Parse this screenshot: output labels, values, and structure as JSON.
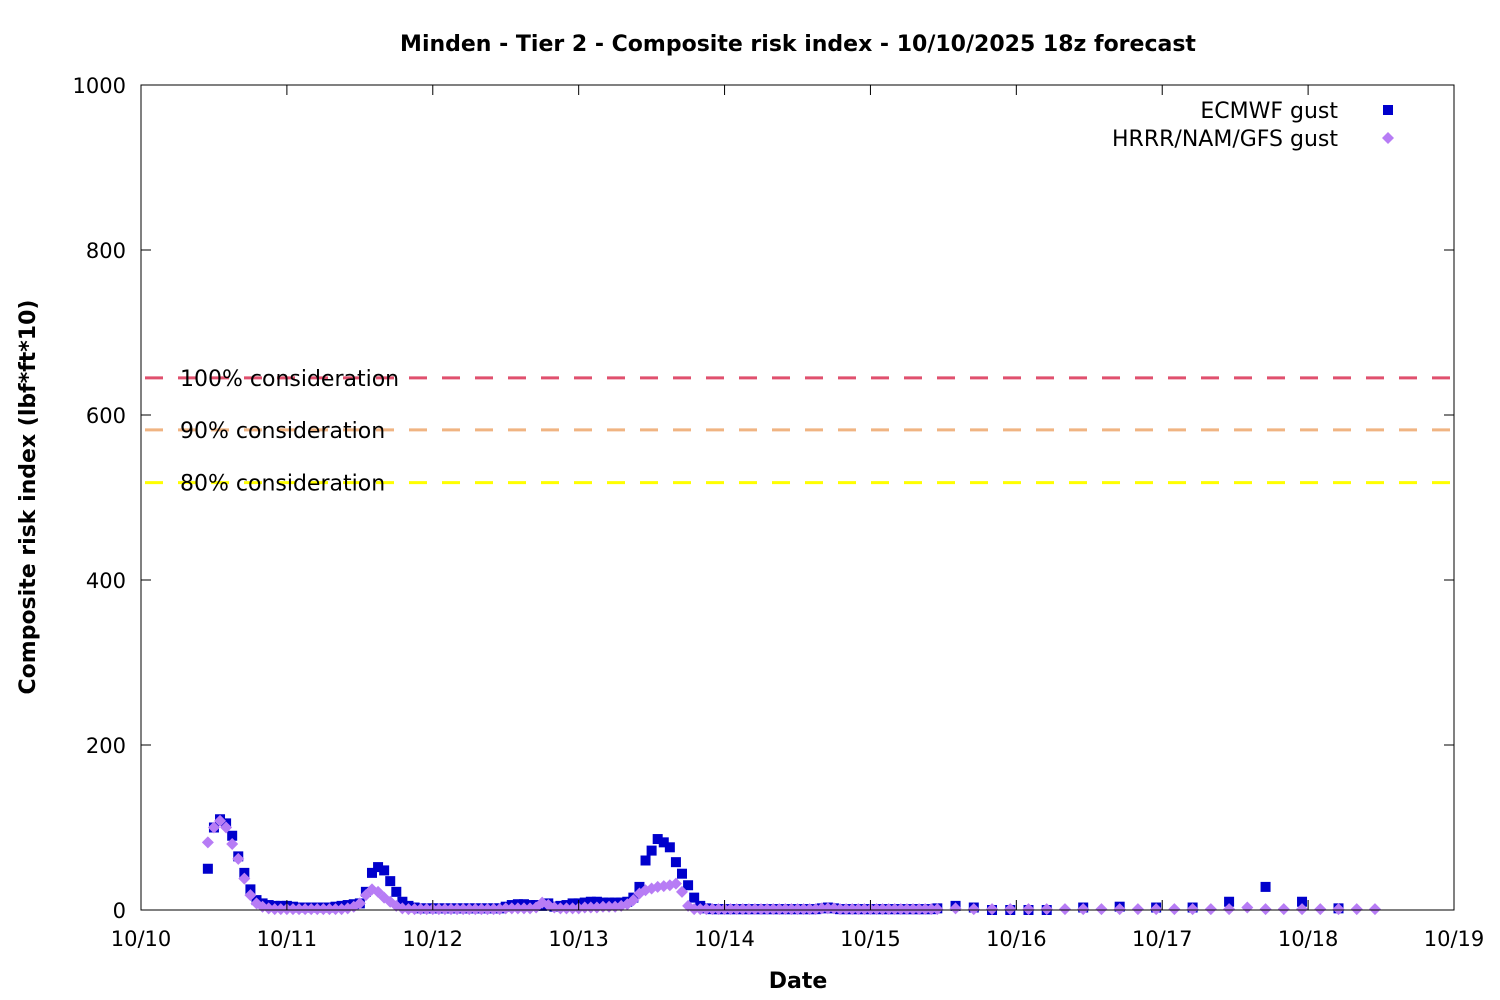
{
  "chart_data": {
    "type": "scatter",
    "title": "Minden - Tier 2 - Composite risk index - 10/10/2025 18z forecast",
    "xlabel": "Date",
    "ylabel": "Composite risk index (lbf*ft*10)",
    "xlim": [
      "10/10",
      "10/19"
    ],
    "ylim": [
      0,
      1000
    ],
    "x_ticks": [
      "10/10",
      "10/11",
      "10/12",
      "10/13",
      "10/14",
      "10/15",
      "10/16",
      "10/17",
      "10/18",
      "10/19"
    ],
    "y_ticks": [
      0,
      200,
      400,
      600,
      800,
      1000
    ],
    "grid": false,
    "legend_position": "top-right",
    "thresholds": [
      {
        "label": "100% consideration",
        "value": 645,
        "color": "#e0506e"
      },
      {
        "label": "90% consideration",
        "value": 582,
        "color": "#f0b482"
      },
      {
        "label": "80% consideration",
        "value": 518,
        "color": "#ffff00"
      }
    ],
    "series": [
      {
        "name": "ECMWF gust",
        "color": "#0000cc",
        "marker": "square",
        "days": [
          {
            "day": "10/10",
            "hour_utc": [
              11,
              12,
              13,
              14,
              15,
              16,
              17,
              18,
              19,
              20,
              21,
              22,
              23
            ],
            "y": [
              50,
              100,
              110,
              105,
              90,
              65,
              45,
              25,
              12,
              8,
              6,
              5,
              5
            ]
          },
          {
            "day": "10/11",
            "hour_utc": [
              0,
              1,
              2,
              3,
              4,
              5,
              6,
              7,
              8,
              9,
              10,
              11,
              12,
              13,
              14,
              15,
              16,
              17,
              18,
              19,
              20,
              21,
              22,
              23
            ],
            "y": [
              5,
              4,
              3,
              3,
              3,
              3,
              3,
              3,
              4,
              5,
              6,
              7,
              8,
              22,
              45,
              52,
              48,
              35,
              22,
              10,
              5,
              3,
              2,
              2
            ]
          },
          {
            "day": "10/12",
            "hour_utc": [
              0,
              1,
              2,
              3,
              4,
              5,
              6,
              7,
              8,
              9,
              10,
              11,
              12,
              13,
              14,
              15,
              16,
              17,
              18,
              19,
              20,
              21,
              22,
              23
            ],
            "y": [
              2,
              2,
              2,
              2,
              2,
              2,
              2,
              2,
              2,
              2,
              2,
              2,
              4,
              6,
              7,
              7,
              6,
              6,
              5,
              8,
              4,
              5,
              6,
              8
            ]
          },
          {
            "day": "10/13",
            "hour_utc": [
              0,
              1,
              2,
              3,
              4,
              5,
              6,
              7,
              8,
              9,
              10,
              11,
              12,
              13,
              14,
              15,
              16,
              17,
              18,
              19,
              20,
              21,
              22,
              23
            ],
            "y": [
              8,
              9,
              10,
              10,
              9,
              9,
              9,
              9,
              10,
              15,
              28,
              60,
              72,
              86,
              82,
              76,
              58,
              44,
              30,
              15,
              5,
              2,
              1,
              1
            ]
          },
          {
            "day": "10/14",
            "hour_utc": [
              0,
              1,
              2,
              3,
              4,
              5,
              6,
              7,
              8,
              9,
              10,
              11,
              12,
              13,
              14,
              15,
              16,
              17,
              18,
              19,
              20,
              21,
              22,
              23
            ],
            "y": [
              1,
              1,
              1,
              1,
              1,
              1,
              1,
              1,
              1,
              1,
              1,
              1,
              1,
              1,
              1,
              1,
              2,
              3,
              2,
              1,
              1,
              1,
              1,
              1
            ]
          },
          {
            "day": "10/15",
            "hour_utc": [
              0,
              1,
              2,
              3,
              4,
              5,
              6,
              7,
              8,
              9,
              10,
              11,
              14,
              17,
              20,
              23
            ],
            "y": [
              1,
              1,
              1,
              1,
              1,
              1,
              1,
              1,
              1,
              1,
              1,
              2,
              5,
              3,
              0,
              0
            ]
          },
          {
            "day": "10/16",
            "hour_utc": [
              2,
              5,
              11,
              17,
              23
            ],
            "y": [
              0,
              0,
              3,
              4,
              3
            ]
          },
          {
            "day": "10/17",
            "hour_utc": [
              5,
              11,
              17,
              23
            ],
            "y": [
              3,
              10,
              28,
              10
            ]
          },
          {
            "day": "10/18",
            "hour_utc": [
              5
            ],
            "y": [
              2
            ]
          }
        ]
      },
      {
        "name": "HRRR/NAM/GFS gust",
        "color": "#b77cf5",
        "marker": "diamond",
        "days": [
          {
            "day": "10/10",
            "hour_utc": [
              11,
              12,
              13,
              14,
              15,
              16,
              17,
              18,
              19,
              20,
              21,
              22,
              23
            ],
            "y": [
              82,
              100,
              108,
              100,
              80,
              62,
              38,
              18,
              8,
              4,
              2,
              1,
              1
            ]
          },
          {
            "day": "10/11",
            "hour_utc": [
              0,
              1,
              2,
              3,
              4,
              5,
              6,
              7,
              8,
              9,
              10,
              11,
              12,
              13,
              14,
              15,
              16,
              17,
              18,
              19,
              20,
              21,
              22,
              23
            ],
            "y": [
              1,
              1,
              1,
              1,
              1,
              1,
              1,
              1,
              1,
              1,
              2,
              4,
              8,
              18,
              25,
              22,
              15,
              10,
              5,
              2,
              1,
              1,
              1,
              1
            ]
          },
          {
            "day": "10/12",
            "hour_utc": [
              0,
              1,
              2,
              3,
              4,
              5,
              6,
              7,
              8,
              9,
              10,
              11,
              12,
              13,
              14,
              15,
              16,
              17,
              18,
              19,
              20,
              21,
              22,
              23
            ],
            "y": [
              1,
              1,
              1,
              1,
              1,
              1,
              1,
              1,
              1,
              1,
              1,
              1,
              2,
              2,
              2,
              2,
              2,
              3,
              9,
              6,
              3,
              2,
              2,
              2
            ]
          },
          {
            "day": "10/13",
            "hour_utc": [
              0,
              1,
              2,
              3,
              4,
              5,
              6,
              7,
              8,
              9,
              10,
              11,
              12,
              13,
              14,
              15,
              16,
              17,
              18,
              19,
              20,
              21,
              22,
              23
            ],
            "y": [
              2,
              3,
              3,
              3,
              4,
              4,
              4,
              5,
              7,
              12,
              20,
              24,
              26,
              28,
              29,
              30,
              32,
              22,
              5,
              1,
              1,
              1,
              1,
              1
            ]
          },
          {
            "day": "10/14",
            "hour_utc": [
              0,
              1,
              2,
              3,
              4,
              5,
              6,
              7,
              8,
              9,
              10,
              11,
              12,
              13,
              14,
              15,
              16,
              17,
              18,
              19,
              20,
              21,
              22,
              23
            ],
            "y": [
              1,
              1,
              1,
              1,
              1,
              1,
              1,
              1,
              1,
              1,
              1,
              1,
              1,
              1,
              1,
              1,
              2,
              2,
              2,
              1,
              1,
              1,
              1,
              1
            ]
          },
          {
            "day": "10/15",
            "hour_utc": [
              0,
              1,
              2,
              3,
              4,
              5,
              6,
              7,
              8,
              9,
              10,
              11,
              14,
              17,
              20,
              23
            ],
            "y": [
              1,
              1,
              1,
              1,
              1,
              1,
              1,
              1,
              1,
              1,
              1,
              1,
              2,
              1,
              1,
              1
            ]
          },
          {
            "day": "10/16",
            "hour_utc": [
              2,
              5,
              8,
              11,
              14,
              17,
              20,
              23
            ],
            "y": [
              1,
              1,
              1,
              1,
              1,
              1,
              1,
              1
            ]
          },
          {
            "day": "10/17",
            "hour_utc": [
              2,
              5,
              8,
              11,
              14,
              17,
              20,
              23
            ],
            "y": [
              1,
              1,
              1,
              1,
              3,
              1,
              1,
              1
            ]
          },
          {
            "day": "10/18",
            "hour_utc": [
              2,
              5,
              8,
              11
            ],
            "y": [
              1,
              1,
              1,
              1
            ]
          }
        ]
      }
    ]
  }
}
